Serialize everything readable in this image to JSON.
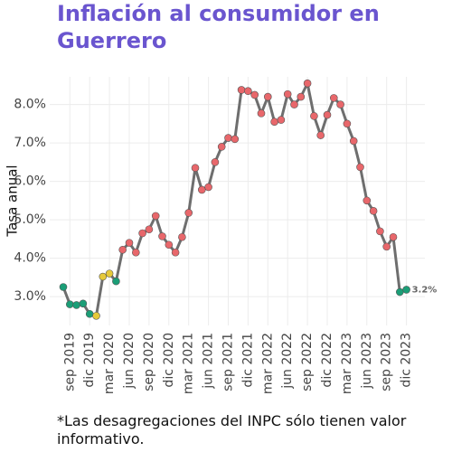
{
  "chart_data": {
    "type": "line",
    "title": "Inflación al consumidor en Guerrero",
    "y_label": "Tasa anual",
    "footnote": "*Las desagregaciones del INPC sólo tienen valor informativo.",
    "categories": [
      null,
      "sep 2019",
      null,
      null,
      "dic 2019",
      null,
      null,
      "mar 2020",
      null,
      null,
      "jun 2020",
      null,
      null,
      "sep 2020",
      null,
      null,
      "dic 2020",
      null,
      null,
      "mar 2021",
      null,
      null,
      "jun 2021",
      null,
      null,
      "sep 2021",
      null,
      null,
      "dic 2021",
      null,
      null,
      "mar 2022",
      null,
      null,
      "jun 2022",
      null,
      null,
      "sep 2022",
      null,
      null,
      "dic 2022",
      null,
      null,
      "mar 2023",
      null,
      null,
      "jun 2023",
      null,
      null,
      "sep 2023",
      null,
      null,
      "dic 2023"
    ],
    "values": [
      3.25,
      2.8,
      2.78,
      2.82,
      2.55,
      2.5,
      3.52,
      3.6,
      3.4,
      4.22,
      4.4,
      4.15,
      4.65,
      4.75,
      5.1,
      4.57,
      4.35,
      4.15,
      4.55,
      5.18,
      6.35,
      5.78,
      5.85,
      6.5,
      6.9,
      7.13,
      7.1,
      8.38,
      8.35,
      8.25,
      7.77,
      8.2,
      7.55,
      7.6,
      8.27,
      8.0,
      8.2,
      8.55,
      7.7,
      7.2,
      7.73,
      8.17,
      8.0,
      7.5,
      7.05,
      6.37,
      5.5,
      5.23,
      4.7,
      4.3,
      4.55,
      3.12,
      3.18
    ],
    "value_labels": [
      null,
      null,
      null,
      null,
      null,
      null,
      null,
      null,
      null,
      null,
      null,
      null,
      null,
      null,
      null,
      null,
      null,
      null,
      null,
      null,
      null,
      null,
      null,
      null,
      null,
      null,
      null,
      null,
      null,
      null,
      null,
      null,
      null,
      null,
      null,
      null,
      null,
      null,
      null,
      null,
      null,
      null,
      null,
      null,
      null,
      null,
      null,
      null,
      null,
      null,
      null,
      null,
      "3.2%"
    ],
    "point_colors": [
      "#1b9e77",
      "#1b9e77",
      "#1b9e77",
      "#1b9e77",
      "#1b9e77",
      "#e6c93a",
      "#e6c93a",
      "#e6c93a",
      "#1b9e77",
      "#e8676b",
      "#e8676b",
      "#e8676b",
      "#e8676b",
      "#e8676b",
      "#e8676b",
      "#e8676b",
      "#e8676b",
      "#e8676b",
      "#e8676b",
      "#e8676b",
      "#e8676b",
      "#e8676b",
      "#e8676b",
      "#e8676b",
      "#e8676b",
      "#e8676b",
      "#e8676b",
      "#e8676b",
      "#e8676b",
      "#e8676b",
      "#e8676b",
      "#e8676b",
      "#e8676b",
      "#e8676b",
      "#e8676b",
      "#e8676b",
      "#e8676b",
      "#e8676b",
      "#e8676b",
      "#e8676b",
      "#e8676b",
      "#e8676b",
      "#e8676b",
      "#e8676b",
      "#e8676b",
      "#e8676b",
      "#e8676b",
      "#e8676b",
      "#e8676b",
      "#e8676b",
      "#e8676b",
      "#1b9e77",
      "#1b9e77"
    ],
    "color": "#6e6e6e",
    "ylim": [
      2.25,
      8.72
    ],
    "yticks": [
      {
        "value": 3,
        "label": "3.0%"
      },
      {
        "value": 4,
        "label": "4.0%"
      },
      {
        "value": 5,
        "label": "5.0%"
      },
      {
        "value": 6,
        "label": "6.0%"
      },
      {
        "value": 7,
        "label": "7.0%"
      },
      {
        "value": 8,
        "label": "8.0%"
      }
    ],
    "grid": true
  }
}
